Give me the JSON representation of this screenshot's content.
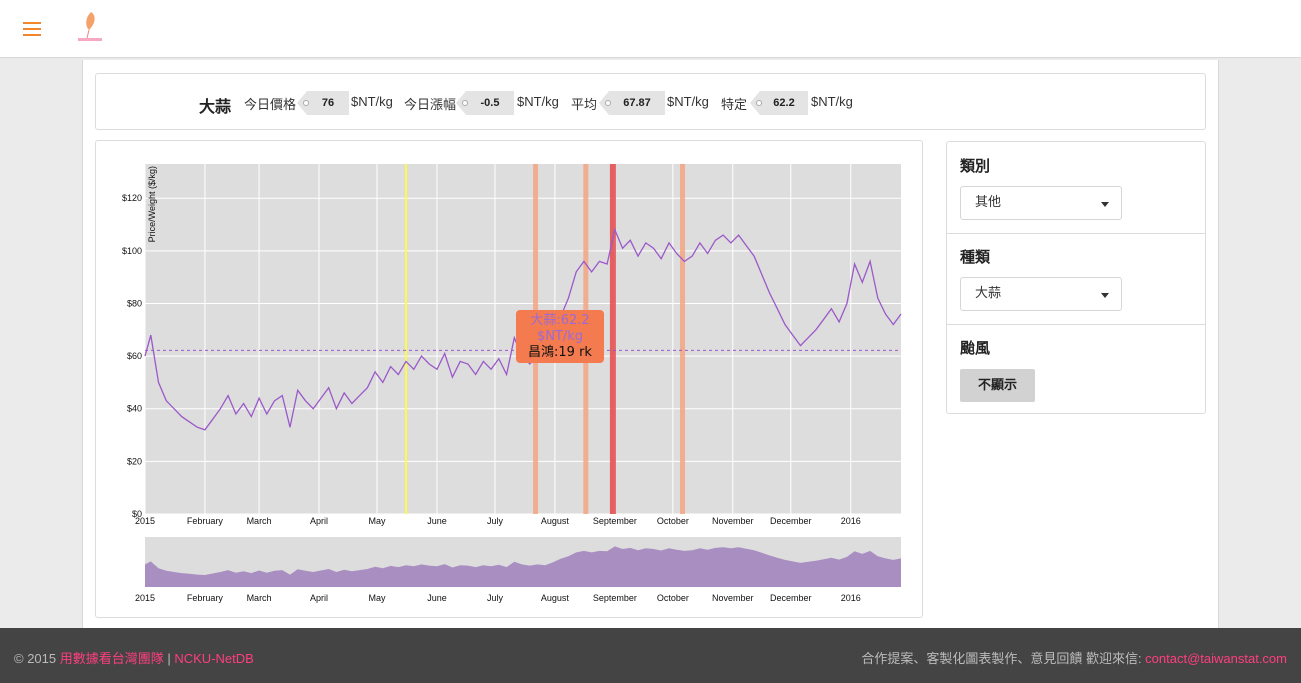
{
  "header": {
    "menu_icon": "hamburger-menu-icon",
    "logo_icon": "taiwan-leaf-logo-icon",
    "accent": "#f0872e"
  },
  "price_bar": {
    "crop": "大蒜",
    "stats": [
      {
        "label": "今日價格",
        "value": "76",
        "unit": "$NT/kg"
      },
      {
        "label": "今日漲幅",
        "value": "-0.5",
        "unit": "$NT/kg"
      },
      {
        "label": "平均",
        "value": "67.87",
        "unit": "$NT/kg"
      },
      {
        "label": "特定",
        "value": "62.2",
        "unit": "$NT/kg"
      }
    ]
  },
  "sidebar": {
    "category": {
      "title": "類別",
      "selected": "其他"
    },
    "variety": {
      "title": "種類",
      "selected": "大蒜"
    },
    "typhoon": {
      "title": "颱風",
      "button": "不顯示"
    }
  },
  "tooltip": {
    "line1": "大蒜:62.2",
    "line2": "$NT/kg",
    "line3": "昌鴻:19 rk"
  },
  "footer": {
    "copyright": "© 2015 ",
    "team_link": "用數據看台灣團隊",
    "separator": " | ",
    "lab_link": "NCKU-NetDB",
    "contact_text": "合作提案、客製化圖表製作、意見回饋 歡迎來信: ",
    "contact_email": "contact@taiwanstat.com"
  },
  "chart_data": {
    "type": "line",
    "ylabel": "Price/Weight ($/kg)",
    "ylim": [
      0,
      133
    ],
    "yticks": [
      "$0",
      "$20",
      "$40",
      "$60",
      "$80",
      "$100",
      "$120"
    ],
    "xlim": [
      "2015-01-01",
      "2016-01-27"
    ],
    "xticks": [
      "2015",
      "February",
      "March",
      "April",
      "May",
      "June",
      "July",
      "August",
      "September",
      "October",
      "November",
      "December",
      "2016"
    ],
    "average_line": 62.2,
    "series": [
      {
        "values": [
          [
            "2015-01-01",
            60
          ],
          [
            "2015-01-04",
            68
          ],
          [
            "2015-01-08",
            50
          ],
          [
            "2015-01-12",
            43
          ],
          [
            "2015-01-16",
            40
          ],
          [
            "2015-01-20",
            37
          ],
          [
            "2015-01-24",
            35
          ],
          [
            "2015-01-28",
            33
          ],
          [
            "2015-02-01",
            32
          ],
          [
            "2015-02-05",
            36
          ],
          [
            "2015-02-09",
            40
          ],
          [
            "2015-02-13",
            45
          ],
          [
            "2015-02-17",
            38
          ],
          [
            "2015-02-21",
            42
          ],
          [
            "2015-02-25",
            37
          ],
          [
            "2015-03-01",
            44
          ],
          [
            "2015-03-05",
            38
          ],
          [
            "2015-03-09",
            43
          ],
          [
            "2015-03-13",
            45
          ],
          [
            "2015-03-17",
            33
          ],
          [
            "2015-03-21",
            47
          ],
          [
            "2015-03-25",
            43
          ],
          [
            "2015-03-29",
            40
          ],
          [
            "2015-04-02",
            44
          ],
          [
            "2015-04-06",
            48
          ],
          [
            "2015-04-10",
            40
          ],
          [
            "2015-04-14",
            46
          ],
          [
            "2015-04-18",
            42
          ],
          [
            "2015-04-22",
            45
          ],
          [
            "2015-04-26",
            48
          ],
          [
            "2015-04-30",
            54
          ],
          [
            "2015-05-04",
            50
          ],
          [
            "2015-05-08",
            56
          ],
          [
            "2015-05-12",
            53
          ],
          [
            "2015-05-16",
            58
          ],
          [
            "2015-05-20",
            55
          ],
          [
            "2015-05-24",
            60
          ],
          [
            "2015-05-28",
            57
          ],
          [
            "2015-06-01",
            55
          ],
          [
            "2015-06-05",
            61
          ],
          [
            "2015-06-09",
            52
          ],
          [
            "2015-06-13",
            58
          ],
          [
            "2015-06-17",
            57
          ],
          [
            "2015-06-21",
            53
          ],
          [
            "2015-06-25",
            58
          ],
          [
            "2015-06-29",
            55
          ],
          [
            "2015-07-03",
            59
          ],
          [
            "2015-07-07",
            53
          ],
          [
            "2015-07-11",
            67
          ],
          [
            "2015-07-15",
            60
          ],
          [
            "2015-07-19",
            57
          ],
          [
            "2015-07-23",
            60
          ],
          [
            "2015-07-27",
            58
          ],
          [
            "2015-07-31",
            66
          ],
          [
            "2015-08-04",
            75
          ],
          [
            "2015-08-08",
            82
          ],
          [
            "2015-08-12",
            92
          ],
          [
            "2015-08-16",
            96
          ],
          [
            "2015-08-20",
            92
          ],
          [
            "2015-08-24",
            96
          ],
          [
            "2015-08-28",
            95
          ],
          [
            "2015-09-01",
            108
          ],
          [
            "2015-09-05",
            101
          ],
          [
            "2015-09-09",
            104
          ],
          [
            "2015-09-13",
            98
          ],
          [
            "2015-09-17",
            103
          ],
          [
            "2015-09-21",
            101
          ],
          [
            "2015-09-25",
            97
          ],
          [
            "2015-09-29",
            103
          ],
          [
            "2015-10-03",
            99
          ],
          [
            "2015-10-07",
            96
          ],
          [
            "2015-10-11",
            98
          ],
          [
            "2015-10-15",
            103
          ],
          [
            "2015-10-19",
            99
          ],
          [
            "2015-10-23",
            104
          ],
          [
            "2015-10-27",
            106
          ],
          [
            "2015-10-31",
            103
          ],
          [
            "2015-11-04",
            106
          ],
          [
            "2015-11-08",
            102
          ],
          [
            "2015-11-12",
            98
          ],
          [
            "2015-11-16",
            91
          ],
          [
            "2015-11-20",
            84
          ],
          [
            "2015-11-24",
            78
          ],
          [
            "2015-11-28",
            72
          ],
          [
            "2015-12-02",
            68
          ],
          [
            "2015-12-06",
            64
          ],
          [
            "2015-12-10",
            67
          ],
          [
            "2015-12-14",
            70
          ],
          [
            "2015-12-18",
            74
          ],
          [
            "2015-12-22",
            78
          ],
          [
            "2015-12-26",
            73
          ],
          [
            "2015-12-30",
            80
          ],
          [
            "2016-01-03",
            95
          ],
          [
            "2016-01-07",
            88
          ],
          [
            "2016-01-11",
            96
          ],
          [
            "2016-01-15",
            82
          ],
          [
            "2016-01-19",
            76
          ],
          [
            "2016-01-23",
            72
          ],
          [
            "2016-01-27",
            76
          ]
        ]
      }
    ],
    "highlight_bands": [
      {
        "date": "2015-05-16",
        "color": "#ffff33"
      },
      {
        "date": "2015-07-22",
        "color": "#f4a582"
      },
      {
        "date": "2015-08-17",
        "color": "#f4a582"
      },
      {
        "date": "2015-08-31",
        "color": "#e34a4a"
      },
      {
        "date": "2015-10-06",
        "color": "#f4a582"
      }
    ],
    "colors": {
      "line": "#9b59c9",
      "plot_bg": "#dddddd",
      "brush_fill": "#a98fc1"
    }
  }
}
